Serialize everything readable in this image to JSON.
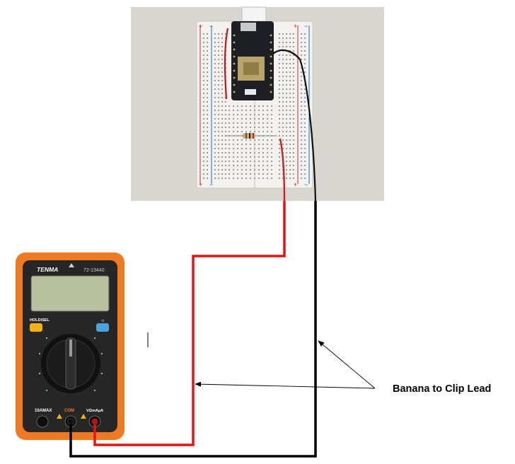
{
  "figure": {
    "callout_label": "Banana to Clip Lead",
    "colors": {
      "red_lead": "#e8120f",
      "black_lead": "#000000",
      "meter_body": "#ef7a22",
      "lcd": "#b8c0a0",
      "hold_button": "#f2b20e",
      "light_button": "#4aa3df",
      "breadboard_photo_bg": "#d9d6d1"
    }
  },
  "breadboard": {
    "rail_marks": [
      "+",
      "−"
    ]
  },
  "multimeter": {
    "brand": "TENMA",
    "model": "72-13440",
    "hold_label": "HOLD/SEL",
    "terminals": [
      "10AMAX",
      "COM",
      "VΩmAµA"
    ]
  }
}
